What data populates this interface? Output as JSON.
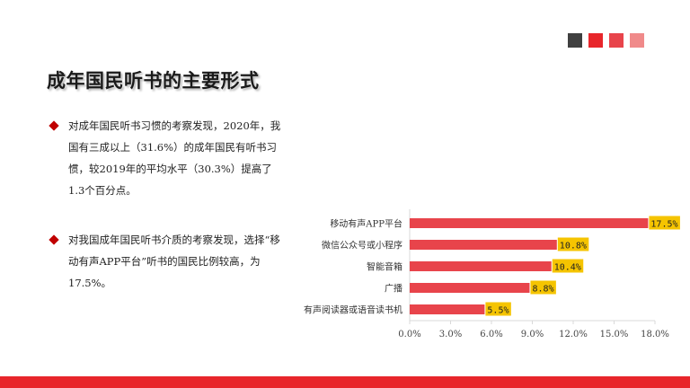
{
  "colors": {
    "accent": "#e8262b",
    "bar": "#e8444b",
    "label_bg": "#f5c400",
    "squares": [
      "#404040",
      "#e8262b",
      "#e8444b",
      "#f08a8a"
    ]
  },
  "title": "成年国民听书的主要形式",
  "paragraphs": [
    "对成年国民听书习惯的考察发现，2020年，我国有三成以上（31.6%）的成年国民有听书习惯，较2019年的平均水平（30.3%）提高了1.3个百分点。",
    "对我国成年国民听书介质的考察发现，选择“移动有声APP平台”听书的国民比例较高，为17.5%。"
  ],
  "chart_data": {
    "type": "bar",
    "orientation": "horizontal",
    "categories": [
      "移动有声APP平台",
      "微信公众号或小程序",
      "智能音箱",
      "广播",
      "有声阅读器或语音读书机"
    ],
    "values": [
      17.5,
      10.8,
      10.4,
      8.8,
      5.5
    ],
    "data_labels": [
      "17.5%",
      "10.8%",
      "10.4%",
      "8.8%",
      "5.5%"
    ],
    "xlim": [
      0,
      18
    ],
    "x_ticks": [
      "0.0%",
      "3.0%",
      "6.0%",
      "9.0%",
      "12.0%",
      "15.0%",
      "18.0%"
    ],
    "grid": false,
    "legend": "none"
  }
}
